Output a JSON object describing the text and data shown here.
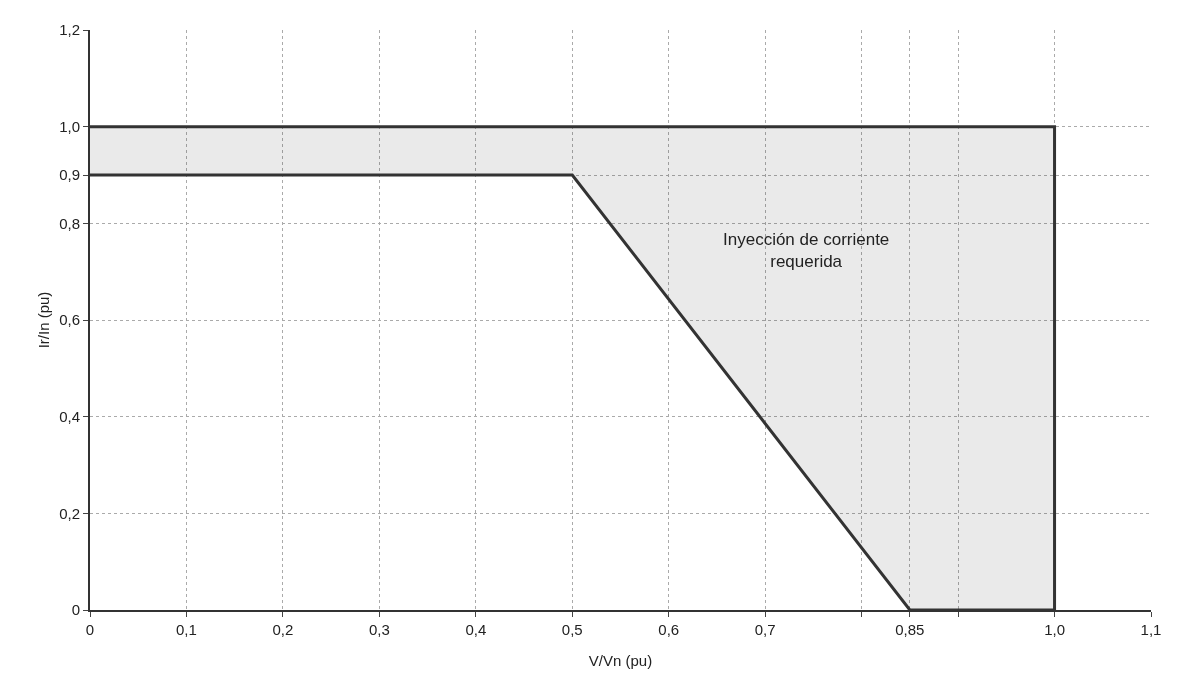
{
  "chart_data": {
    "type": "line",
    "xlabel": "V/Vn (pu)",
    "ylabel": "Ir/In (pu)",
    "series": [
      {
        "color": "#333333",
        "x": [
          0,
          0.5,
          0.85,
          1
        ],
        "values": [
          0.9,
          0.9,
          0,
          0
        ],
        "lower": [
          0.9,
          0.9,
          0,
          0
        ],
        "upper": [
          1,
          1,
          1,
          1
        ]
      },
      {
        "color": "#333333",
        "x": [
          0,
          1,
          1
        ],
        "values": [
          1,
          1,
          0
        ]
      }
    ],
    "xlim": [
      0,
      1.1
    ],
    "ylim": [
      0,
      1.2
    ],
    "xticks": [
      0,
      {
        "value": 0.1,
        "label": "0,1"
      },
      {
        "value": 0.2,
        "label": "0,2"
      },
      {
        "value": 0.3,
        "label": "0,3"
      },
      {
        "value": 0.4,
        "label": "0,4"
      },
      {
        "value": 0.5,
        "label": "0,5"
      },
      {
        "value": 0.6,
        "label": "0,6"
      },
      {
        "value": 0.7,
        "label": "0,7"
      },
      {
        "value": 0.8,
        "label": null
      },
      {
        "value": 0.85,
        "label": "0,85"
      },
      {
        "value": 0.9,
        "label": null
      },
      {
        "value": 1.0,
        "label": "1,0"
      },
      {
        "value": 1.1,
        "label": "1,1"
      }
    ],
    "yticks": [
      0,
      {
        "value": 0.2,
        "label": "0,2"
      },
      {
        "value": 0.4,
        "label": "0,4"
      },
      {
        "value": 0.6,
        "label": "0,6"
      },
      {
        "value": 0.8,
        "label": "0,8"
      },
      {
        "value": 0.9,
        "label": "0,9"
      },
      {
        "value": 1.0,
        "label": "1,0"
      },
      {
        "value": 1.2,
        "label": "1,2"
      }
    ],
    "annotations": [
      "Inyección de corriente requerida"
    ],
    "grid": true,
    "marker": "none",
    "line_style": "solid"
  }
}
